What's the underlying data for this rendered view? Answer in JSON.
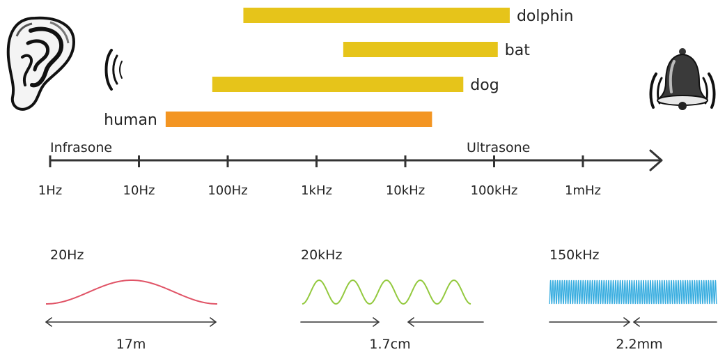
{
  "colors": {
    "animal_bar": "#e6c41a",
    "human_bar": "#f39522",
    "axis": "#333333",
    "wave_low": "#e05366",
    "wave_mid": "#93c93e",
    "wave_high": "#3aaee0"
  },
  "icons": {
    "left": "ear-icon",
    "right": "bell-icon"
  },
  "ranges": [
    {
      "label": "dolphin",
      "low_hz": 150,
      "high_hz": 150000,
      "kind": "animal"
    },
    {
      "label": "bat",
      "low_hz": 2000,
      "high_hz": 110000,
      "kind": "animal"
    },
    {
      "label": "dog",
      "low_hz": 67,
      "high_hz": 45000,
      "kind": "animal"
    },
    {
      "label": "human",
      "low_hz": 20,
      "high_hz": 20000,
      "kind": "human"
    }
  ],
  "axis": {
    "scale": "log",
    "zone_left": "Infrasone",
    "zone_right": "Ultrasone",
    "ticks": [
      {
        "hz": 1,
        "label": "1Hz"
      },
      {
        "hz": 10,
        "label": "10Hz"
      },
      {
        "hz": 100,
        "label": "100Hz"
      },
      {
        "hz": 1000,
        "label": "1kHz"
      },
      {
        "hz": 10000,
        "label": "10kHz"
      },
      {
        "hz": 100000,
        "label": "100kHz"
      },
      {
        "hz": 1000000,
        "label": "1mHz"
      }
    ]
  },
  "waves": [
    {
      "freq_label": "20Hz",
      "length_label": "17m"
    },
    {
      "freq_label": "20kHz",
      "length_label": "1.7cm"
    },
    {
      "freq_label": "150kHz",
      "length_label": "2.2mm"
    }
  ]
}
